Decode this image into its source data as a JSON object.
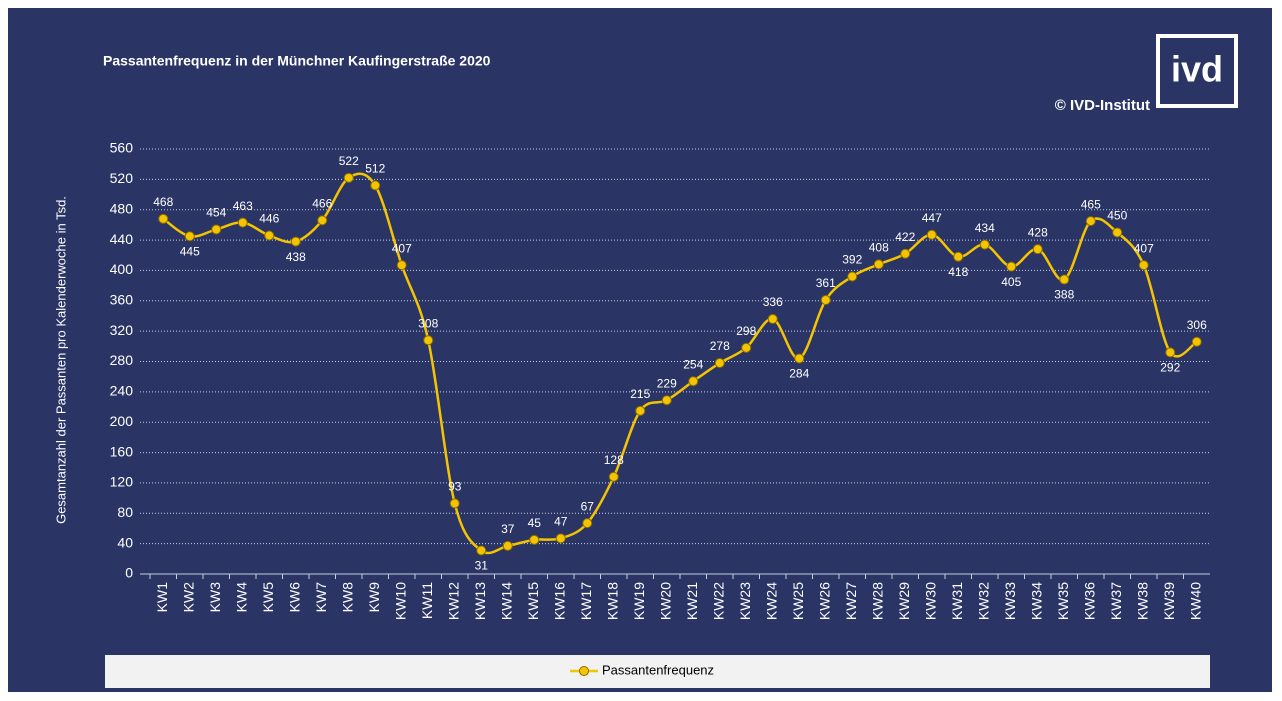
{
  "chart_data": {
    "type": "line",
    "title": "Passantenfrequenz in der Münchner Kaufingerstraße 2020",
    "source": "© IVD-Institut",
    "logo": "ivd",
    "y_label": "Gesamtanzahl der Passanten pro  Kalenderwoche in Tsd.",
    "categories": [
      "KW1",
      "KW2",
      "KW3",
      "KW4",
      "KW5",
      "KW6",
      "KW7",
      "KW8",
      "KW9",
      "KW10",
      "KW11",
      "KW12",
      "KW13",
      "KW14",
      "KW15",
      "KW16",
      "KW17",
      "KW18",
      "KW19",
      "KW20",
      "KW21",
      "KW22",
      "KW23",
      "KW24",
      "KW25",
      "KW26",
      "KW27",
      "KW28",
      "KW29",
      "KW30",
      "KW31",
      "KW32",
      "KW33",
      "KW34",
      "KW35",
      "KW36",
      "KW37",
      "KW38",
      "KW39",
      "KW40"
    ],
    "series": [
      {
        "name": "Passantenfrequenz",
        "color": "#f5c400",
        "values": [
          468,
          445,
          454,
          463,
          446,
          438,
          466,
          522,
          512,
          407,
          308,
          93,
          31,
          37,
          45,
          47,
          67,
          128,
          215,
          229,
          254,
          278,
          298,
          336,
          284,
          361,
          392,
          408,
          422,
          447,
          418,
          434,
          405,
          428,
          388,
          465,
          450,
          407,
          292,
          306
        ]
      }
    ],
    "ylim": [
      0,
      560
    ],
    "yticks": [
      0,
      40,
      80,
      120,
      160,
      200,
      240,
      280,
      320,
      360,
      400,
      440,
      480,
      520,
      560
    ],
    "grid": true,
    "legend": "bottom"
  }
}
